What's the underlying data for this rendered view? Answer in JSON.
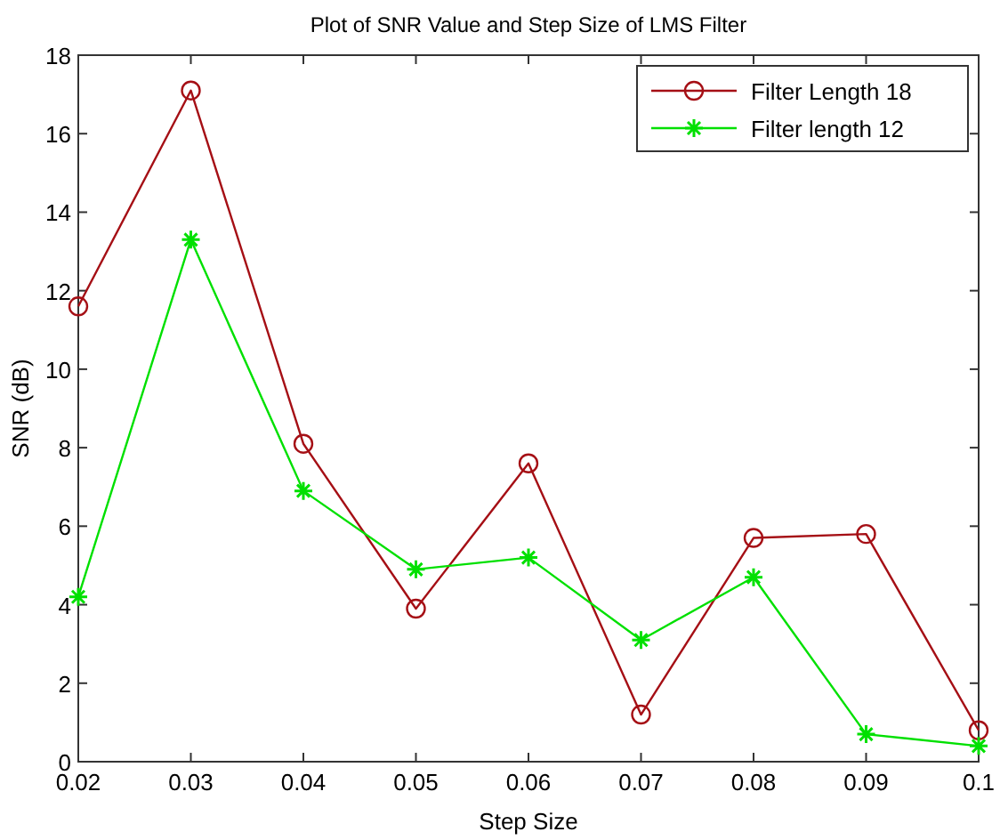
{
  "chart_data": {
    "type": "line",
    "title": "Plot of SNR Value and Step Size of LMS Filter",
    "xlabel": "Step Size",
    "ylabel": "SNR (dB)",
    "x": [
      0.02,
      0.03,
      0.04,
      0.05,
      0.06,
      0.07,
      0.08,
      0.09,
      0.1
    ],
    "series": [
      {
        "name": "Filter Length 18",
        "color": "#a50f15",
        "marker": "circle",
        "values": [
          11.6,
          17.1,
          8.1,
          3.9,
          7.6,
          1.2,
          5.7,
          5.8,
          0.8
        ]
      },
      {
        "name": "Filter length 12",
        "color": "#00e000",
        "marker": "cross",
        "values": [
          4.2,
          13.3,
          6.9,
          4.9,
          5.2,
          3.1,
          4.7,
          0.7,
          0.4
        ]
      }
    ],
    "xlim": [
      0.02,
      0.1
    ],
    "xticks": [
      {
        "value": 0.02,
        "label": "0.02"
      },
      {
        "value": 0.03,
        "label": "0.03"
      },
      {
        "value": 0.04,
        "label": "0.04"
      },
      {
        "value": 0.05,
        "label": "0.05"
      },
      {
        "value": 0.06,
        "label": "0.06"
      },
      {
        "value": 0.07,
        "label": "0.07"
      },
      {
        "value": 0.08,
        "label": "0.08"
      },
      {
        "value": 0.09,
        "label": "0.09"
      },
      {
        "value": 0.1,
        "label": "0.1"
      }
    ],
    "ylim": [
      0,
      18
    ],
    "yticks": [
      0,
      2,
      4,
      6,
      8,
      10,
      12,
      14,
      16,
      18
    ],
    "legend": "top right",
    "grid": false
  }
}
